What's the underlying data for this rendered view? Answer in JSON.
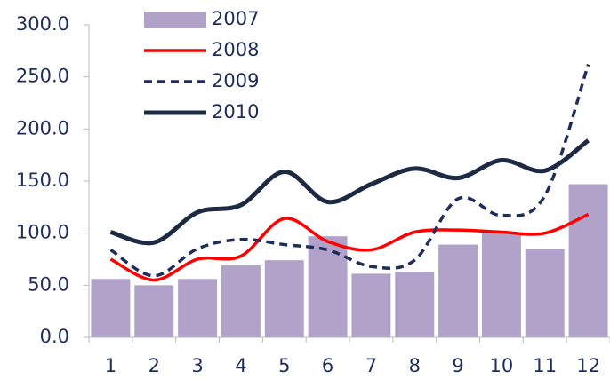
{
  "chart_data": {
    "type": "bar_line",
    "categories": [
      "1",
      "2",
      "3",
      "4",
      "5",
      "6",
      "7",
      "8",
      "9",
      "10",
      "11",
      "12"
    ],
    "series": [
      {
        "name": "2007",
        "type": "bar",
        "color": "#b0a2c8",
        "values": [
          56,
          50,
          56,
          69,
          74,
          97,
          61,
          63,
          89,
          100,
          85,
          147
        ]
      },
      {
        "name": "2008",
        "type": "line",
        "color": "#ff0000",
        "dash": false,
        "values": [
          75,
          55,
          75,
          78,
          114,
          92,
          84,
          101,
          103,
          101,
          100,
          118
        ]
      },
      {
        "name": "2009",
        "type": "line",
        "color": "#1f2d5a",
        "dash": true,
        "values": [
          84,
          59,
          85,
          94,
          89,
          84,
          68,
          74,
          133,
          117,
          136,
          262
        ]
      },
      {
        "name": "2010",
        "type": "line",
        "color": "#1c2a44",
        "dash": false,
        "values": [
          101,
          91,
          120,
          127,
          159,
          130,
          147,
          162,
          153,
          170,
          160,
          189
        ]
      }
    ],
    "ylim": [
      0,
      300
    ],
    "yticks": [
      {
        "value": 0,
        "label": "0.0"
      },
      {
        "value": 50,
        "label": "50.0"
      },
      {
        "value": 100,
        "label": "100.0"
      },
      {
        "value": 150,
        "label": "150.0"
      },
      {
        "value": 200,
        "label": "200.0"
      },
      {
        "value": 250,
        "label": "250.0"
      },
      {
        "value": 300,
        "label": "300.0"
      }
    ],
    "grid": false,
    "legend": "top-left"
  }
}
